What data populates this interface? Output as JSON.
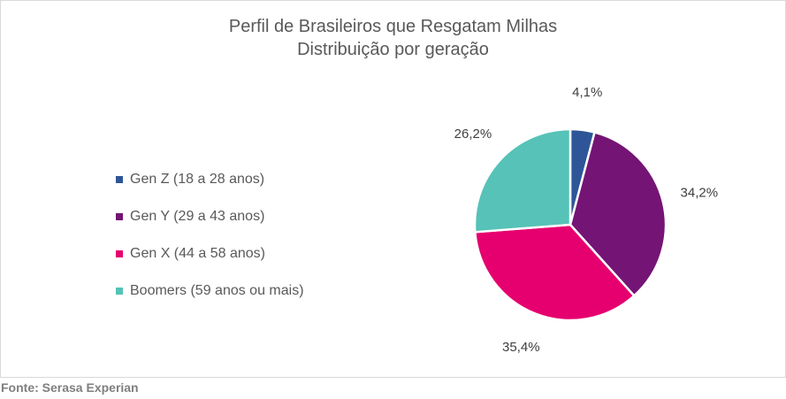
{
  "chart_data": {
    "type": "pie",
    "title": "Perfil de Brasileiros que Resgatam Milhas",
    "subtitle": "Distribuição por geração",
    "categories": [
      "Gen Z (18 a 28 anos)",
      "Gen Y (29 a 43 anos)",
      "Gen X (44 a 58 anos)",
      "Boomers (59 anos ou mais)"
    ],
    "values": [
      4.1,
      34.2,
      35.4,
      26.2
    ],
    "data_labels": [
      "4,1%",
      "34,2%",
      "35,4%",
      "26,2%"
    ],
    "colors": [
      "#2E5597",
      "#741475",
      "#E6006F",
      "#56C2B8"
    ],
    "legend_position": "left"
  },
  "source": "Fonte: Serasa Experian"
}
